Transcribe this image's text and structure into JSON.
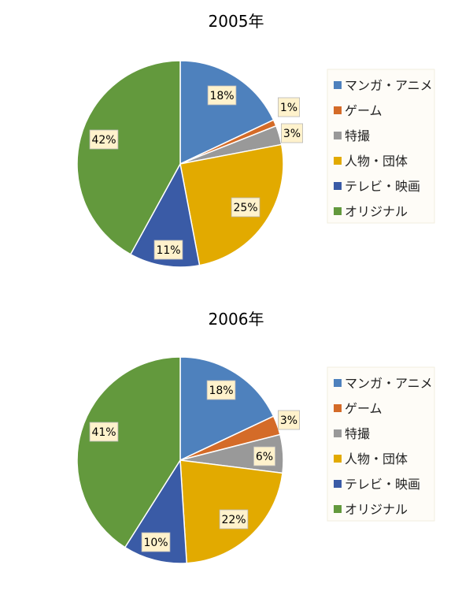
{
  "chart_data": [
    {
      "type": "pie",
      "title": "2005年",
      "categories": [
        "マンガ・アニメ",
        "ゲーム",
        "特撮",
        "人物・団体",
        "テレビ・映画",
        "オリジナル"
      ],
      "values": [
        18,
        1,
        3,
        25,
        11,
        42
      ],
      "data_labels": [
        "18%",
        "1%",
        "3%",
        "25%",
        "11%",
        "42%"
      ],
      "colors": [
        "#4e81bd",
        "#d46b28",
        "#999999",
        "#e2aa00",
        "#3a5ba6",
        "#63993d"
      ],
      "legend_position": "right",
      "start_angle_deg": 0,
      "direction": "clockwise"
    },
    {
      "type": "pie",
      "title": "2006年",
      "categories": [
        "マンガ・アニメ",
        "ゲーム",
        "特撮",
        "人物・団体",
        "テレビ・映画",
        "オリジナル"
      ],
      "values": [
        18,
        3,
        6,
        22,
        10,
        41
      ],
      "data_labels": [
        "18%",
        "3%",
        "6%",
        "22%",
        "10%",
        "41%"
      ],
      "colors": [
        "#4e81bd",
        "#d46b28",
        "#999999",
        "#e2aa00",
        "#3a5ba6",
        "#63993d"
      ],
      "legend_position": "right",
      "start_angle_deg": 0,
      "direction": "clockwise"
    }
  ]
}
